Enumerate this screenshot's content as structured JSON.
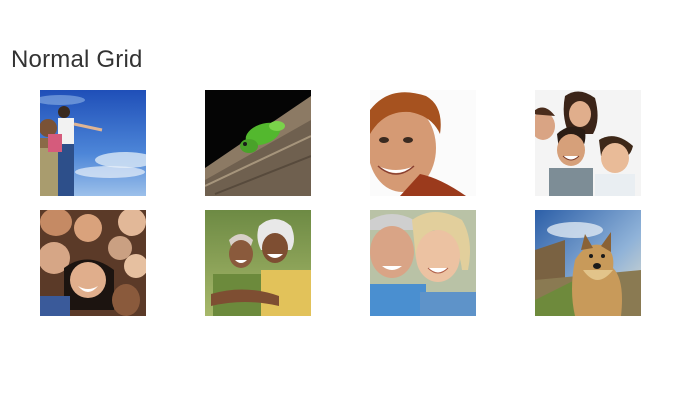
{
  "section": {
    "title": "Normal Grid"
  },
  "grid": {
    "columns": 4,
    "rows": 2,
    "items": [
      {
        "subject": "boy-and-man-sky-photo"
      },
      {
        "subject": "lizard-on-log-photo"
      },
      {
        "subject": "smiling-teen-boy-photo"
      },
      {
        "subject": "family-portrait-photo"
      },
      {
        "subject": "group-selfie-photo"
      },
      {
        "subject": "elderly-couple-outdoor-photo"
      },
      {
        "subject": "senior-couple-smiling-photo"
      },
      {
        "subject": "terrier-dog-photo"
      }
    ]
  }
}
